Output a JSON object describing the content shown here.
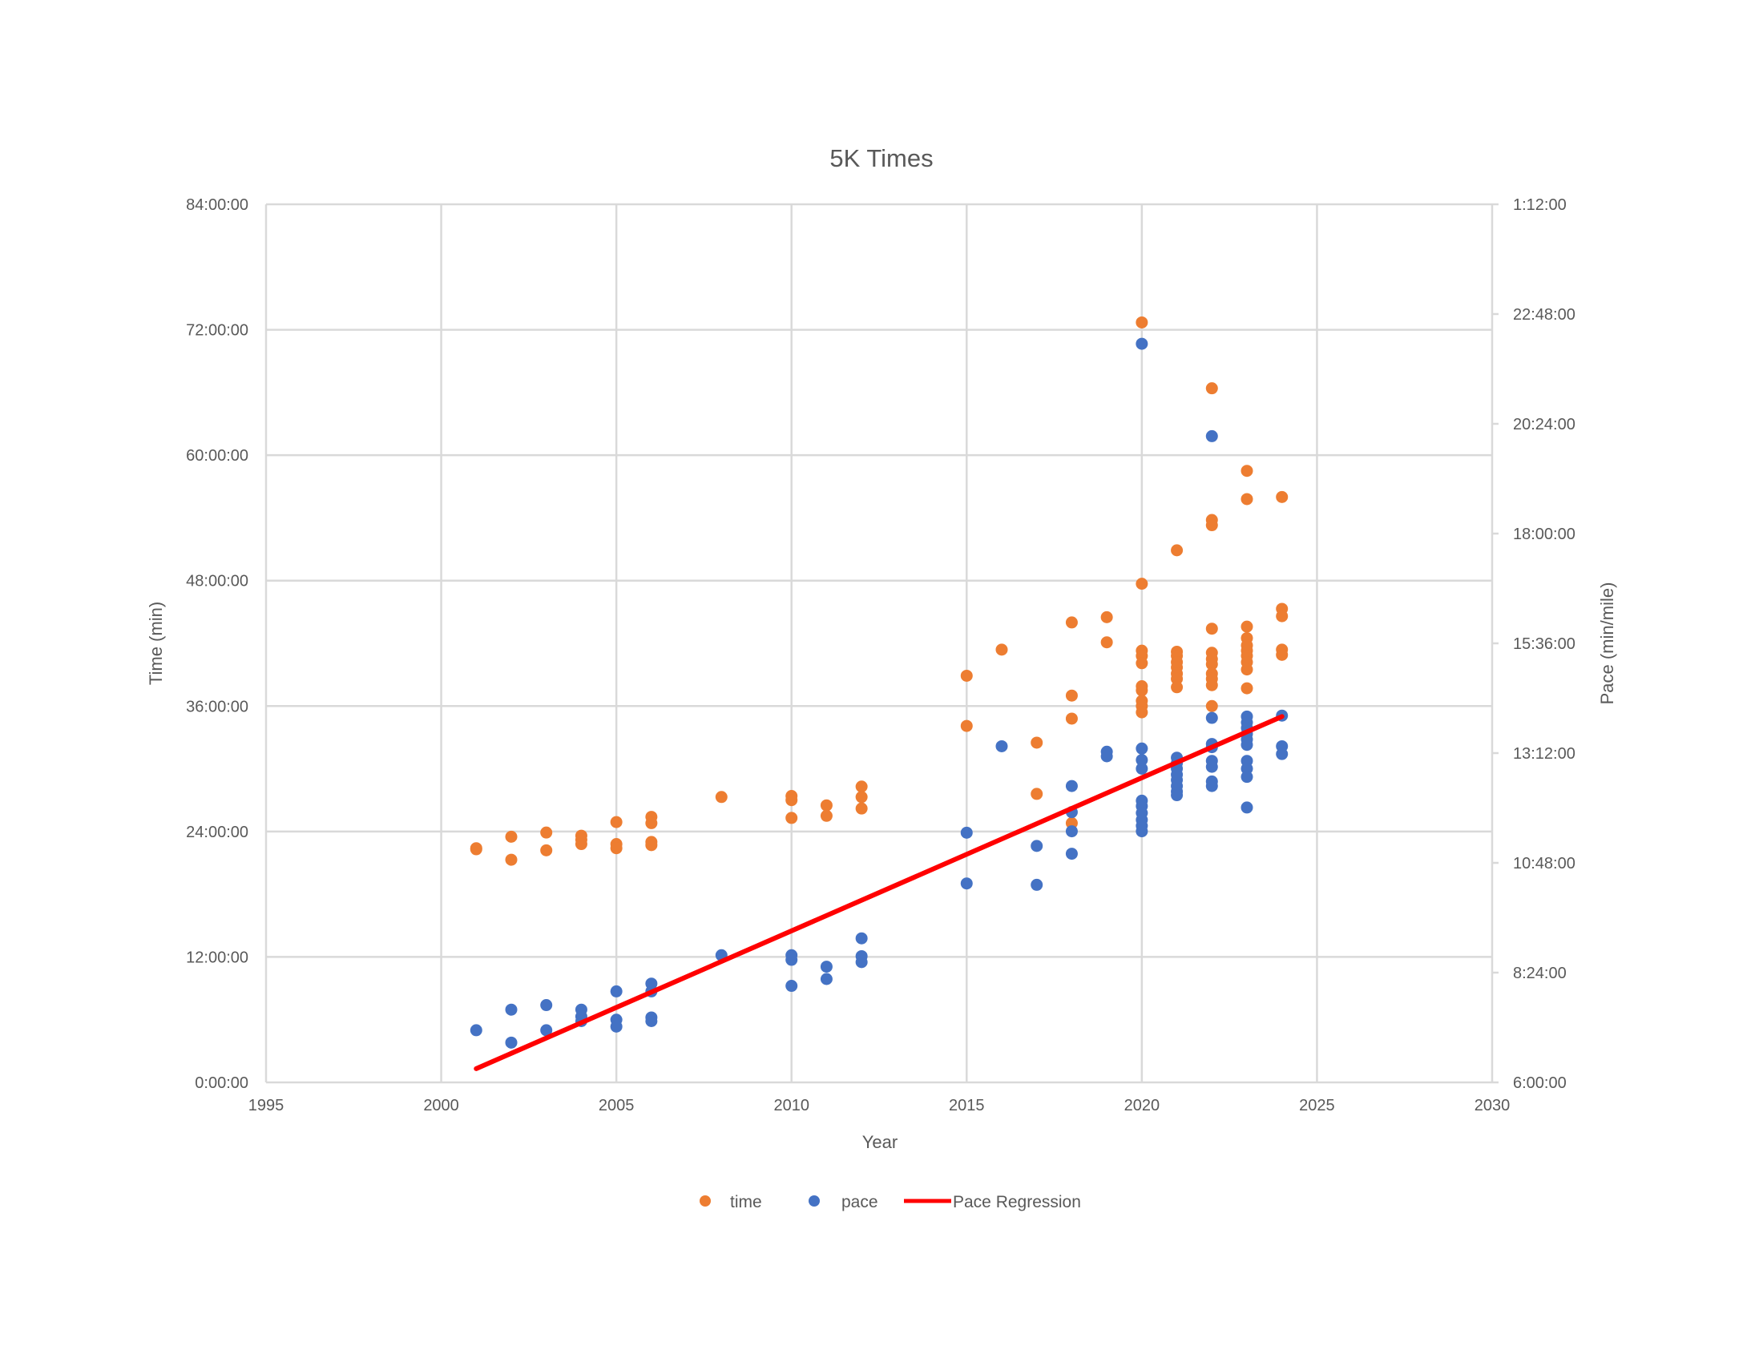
{
  "chart_data": {
    "type": "scatter",
    "title": "5K Times",
    "xlabel": "Year",
    "ylabel": "Time (min)",
    "y2label": "Pace (min/mile)",
    "xlim": [
      1995,
      2030
    ],
    "ylim_minutes": [
      0,
      84
    ],
    "y2lim_hours": [
      6,
      25.2
    ],
    "grid": true,
    "legend_position": "bottom",
    "x_ticks": [
      "1995",
      "2000",
      "2005",
      "2010",
      "2015",
      "2020",
      "2025",
      "2030"
    ],
    "y_ticks": [
      "0:00:00",
      "12:00:00",
      "24:00:00",
      "36:00:00",
      "48:00:00",
      "60:00:00",
      "72:00:00",
      "84:00:00"
    ],
    "y2_ticks": [
      "6:00:00",
      "8:24:00",
      "10:48:00",
      "13:12:00",
      "15:36:00",
      "18:00:00",
      "20:24:00",
      "22:48:00",
      "1:12:00"
    ],
    "colors": {
      "time": "#ED7D31",
      "pace": "#4472C4",
      "regression": "#FF0000",
      "grid": "#D9D9D9",
      "text": "#595959"
    },
    "legend": [
      "time",
      "pace",
      "Pace Regression"
    ],
    "series": [
      {
        "name": "time",
        "axis": "left",
        "unit": "minutes",
        "points": [
          [
            2001,
            22.4
          ],
          [
            2001,
            22.3
          ],
          [
            2002,
            23.5
          ],
          [
            2002,
            21.3
          ],
          [
            2003,
            23.9
          ],
          [
            2003,
            22.2
          ],
          [
            2004,
            23.6
          ],
          [
            2004,
            23.2
          ],
          [
            2004,
            22.8
          ],
          [
            2005,
            24.9
          ],
          [
            2005,
            22.8
          ],
          [
            2005,
            22.4
          ],
          [
            2006,
            25.4
          ],
          [
            2006,
            24.8
          ],
          [
            2006,
            23.0
          ],
          [
            2006,
            22.7
          ],
          [
            2008,
            27.3
          ],
          [
            2010,
            27.4
          ],
          [
            2010,
            27.0
          ],
          [
            2010,
            25.3
          ],
          [
            2011,
            26.5
          ],
          [
            2011,
            25.5
          ],
          [
            2012,
            28.3
          ],
          [
            2012,
            27.3
          ],
          [
            2012,
            26.2
          ],
          [
            2015,
            38.9
          ],
          [
            2015,
            34.1
          ],
          [
            2016,
            41.4
          ],
          [
            2017,
            32.5
          ],
          [
            2017,
            27.6
          ],
          [
            2018,
            44.0
          ],
          [
            2018,
            37.0
          ],
          [
            2018,
            34.8
          ],
          [
            2018,
            24.8
          ],
          [
            2019,
            44.5
          ],
          [
            2019,
            42.1
          ],
          [
            2020,
            72.7
          ],
          [
            2020,
            47.7
          ],
          [
            2020,
            41.3
          ],
          [
            2020,
            40.8
          ],
          [
            2020,
            40.1
          ],
          [
            2020,
            37.9
          ],
          [
            2020,
            37.5
          ],
          [
            2020,
            36.5
          ],
          [
            2020,
            36.0
          ],
          [
            2020,
            35.4
          ],
          [
            2021,
            50.9
          ],
          [
            2021,
            41.2
          ],
          [
            2021,
            40.8
          ],
          [
            2021,
            40.2
          ],
          [
            2021,
            39.7
          ],
          [
            2021,
            39.1
          ],
          [
            2021,
            38.6
          ],
          [
            2021,
            37.8
          ],
          [
            2022,
            66.4
          ],
          [
            2022,
            53.8
          ],
          [
            2022,
            53.3
          ],
          [
            2022,
            43.4
          ],
          [
            2022,
            41.1
          ],
          [
            2022,
            40.5
          ],
          [
            2022,
            40.0
          ],
          [
            2022,
            39.1
          ],
          [
            2022,
            38.6
          ],
          [
            2022,
            38.0
          ],
          [
            2022,
            36.0
          ],
          [
            2023,
            58.5
          ],
          [
            2023,
            55.8
          ],
          [
            2023,
            43.6
          ],
          [
            2023,
            42.5
          ],
          [
            2023,
            41.8
          ],
          [
            2023,
            41.3
          ],
          [
            2023,
            40.8
          ],
          [
            2023,
            40.2
          ],
          [
            2023,
            39.5
          ],
          [
            2023,
            37.7
          ],
          [
            2024,
            56.0
          ],
          [
            2024,
            45.3
          ],
          [
            2024,
            44.6
          ],
          [
            2024,
            41.4
          ],
          [
            2024,
            40.9
          ]
        ]
      },
      {
        "name": "pace",
        "axis": "right",
        "unit": "hours (axis units)",
        "points": [
          [
            2001,
            7.14
          ],
          [
            2002,
            7.59
          ],
          [
            2002,
            6.87
          ],
          [
            2003,
            7.69
          ],
          [
            2003,
            7.14
          ],
          [
            2004,
            7.59
          ],
          [
            2004,
            7.44
          ],
          [
            2004,
            7.34
          ],
          [
            2005,
            7.99
          ],
          [
            2005,
            7.37
          ],
          [
            2005,
            7.22
          ],
          [
            2006,
            8.16
          ],
          [
            2006,
            7.99
          ],
          [
            2006,
            7.42
          ],
          [
            2006,
            7.34
          ],
          [
            2008,
            8.78
          ],
          [
            2010,
            8.78
          ],
          [
            2010,
            8.68
          ],
          [
            2010,
            8.11
          ],
          [
            2011,
            8.53
          ],
          [
            2011,
            8.26
          ],
          [
            2012,
            9.15
          ],
          [
            2012,
            8.76
          ],
          [
            2012,
            8.63
          ],
          [
            2015,
            11.46
          ],
          [
            2015,
            10.35
          ],
          [
            2016,
            13.35
          ],
          [
            2017,
            11.17
          ],
          [
            2017,
            10.32
          ],
          [
            2018,
            12.48
          ],
          [
            2018,
            11.91
          ],
          [
            2018,
            11.49
          ],
          [
            2018,
            11.0
          ],
          [
            2019,
            13.23
          ],
          [
            2019,
            13.13
          ],
          [
            2020,
            22.15
          ],
          [
            2020,
            13.3
          ],
          [
            2020,
            13.05
          ],
          [
            2020,
            12.86
          ],
          [
            2020,
            12.16
          ],
          [
            2020,
            12.04
          ],
          [
            2020,
            11.89
          ],
          [
            2020,
            11.74
          ],
          [
            2020,
            11.61
          ],
          [
            2020,
            11.49
          ],
          [
            2021,
            13.1
          ],
          [
            2021,
            12.98
          ],
          [
            2021,
            12.86
          ],
          [
            2021,
            12.73
          ],
          [
            2021,
            12.61
          ],
          [
            2021,
            12.48
          ],
          [
            2021,
            12.36
          ],
          [
            2021,
            12.28
          ],
          [
            2022,
            20.13
          ],
          [
            2022,
            13.97
          ],
          [
            2022,
            13.4
          ],
          [
            2022,
            13.33
          ],
          [
            2022,
            13.03
          ],
          [
            2022,
            12.9
          ],
          [
            2022,
            12.58
          ],
          [
            2022,
            12.48
          ],
          [
            2023,
            14.0
          ],
          [
            2023,
            13.87
          ],
          [
            2023,
            13.75
          ],
          [
            2023,
            13.62
          ],
          [
            2023,
            13.5
          ],
          [
            2023,
            13.38
          ],
          [
            2023,
            13.03
          ],
          [
            2023,
            12.86
          ],
          [
            2023,
            12.68
          ],
          [
            2023,
            12.01
          ],
          [
            2024,
            14.02
          ],
          [
            2024,
            13.35
          ],
          [
            2024,
            13.18
          ]
        ]
      },
      {
        "name": "Pace Regression",
        "axis": "right",
        "type": "line",
        "points": [
          [
            2001,
            6.3
          ],
          [
            2024,
            14.0
          ]
        ]
      }
    ]
  }
}
